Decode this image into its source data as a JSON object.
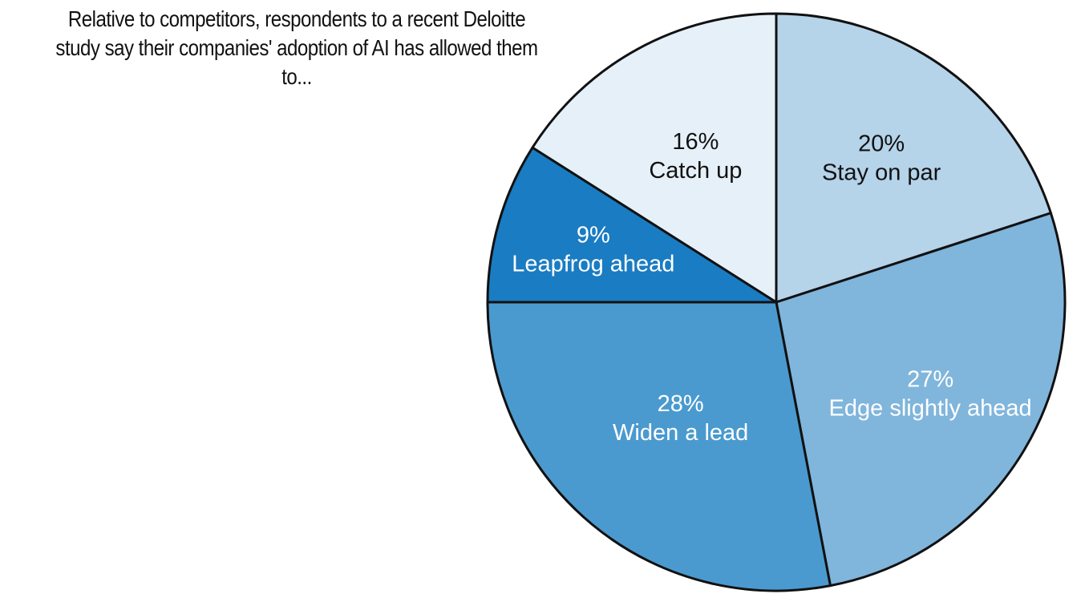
{
  "chart_data": {
    "type": "pie",
    "title_lines": [
      "Relative to competitors, respondents to a recent Deloitte",
      "study say their companies' adoption of AI has allowed them to..."
    ],
    "slices": [
      {
        "label": "Stay on par",
        "value": 20,
        "value_label": "20%",
        "color": "#b5d3e9",
        "text_color": "#111111"
      },
      {
        "label": "Edge slightly ahead",
        "value": 27,
        "value_label": "27%",
        "color": "#80b5dc",
        "text_color": "#ffffff"
      },
      {
        "label": "Widen a lead",
        "value": 28,
        "value_label": "28%",
        "color": "#4a9acf",
        "text_color": "#ffffff"
      },
      {
        "label": "Leapfrog ahead",
        "value": 9,
        "value_label": "9%",
        "color": "#1a7cc2",
        "text_color": "#ffffff"
      },
      {
        "label": "Catch up",
        "value": 16,
        "value_label": "16%",
        "color": "#e6f0f8",
        "text_color": "#111111"
      }
    ],
    "start": "12 o'clock",
    "direction": "clockwise",
    "legend": "none",
    "slice_labels": "inside",
    "outline_color": "#111111"
  }
}
